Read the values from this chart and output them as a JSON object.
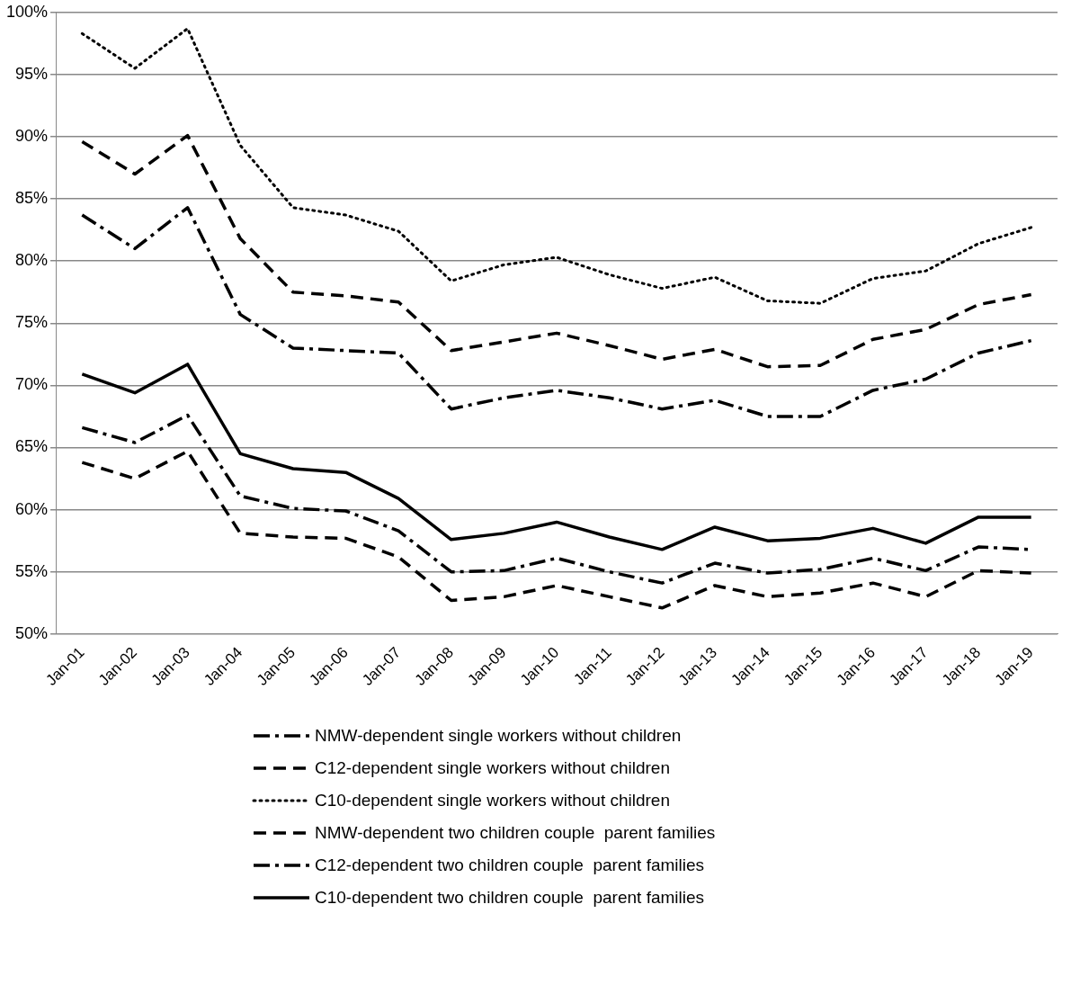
{
  "chart_data": {
    "type": "line",
    "categories": [
      "Jan-01",
      "Jan-02",
      "Jan-03",
      "Jan-04",
      "Jan-05",
      "Jan-06",
      "Jan-07",
      "Jan-08",
      "Jan-09",
      "Jan-10",
      "Jan-11",
      "Jan-12",
      "Jan-13",
      "Jan-14",
      "Jan-15",
      "Jan-16",
      "Jan-17",
      "Jan-18",
      "Jan-19"
    ],
    "ylim": [
      50,
      100
    ],
    "yticks": [
      {
        "value": 50,
        "label": "50%"
      },
      {
        "value": 55,
        "label": "55%"
      },
      {
        "value": 60,
        "label": "60%"
      },
      {
        "value": 65,
        "label": "65%"
      },
      {
        "value": 70,
        "label": "70%"
      },
      {
        "value": 75,
        "label": "75%"
      },
      {
        "value": 80,
        "label": "80%"
      },
      {
        "value": 85,
        "label": "85%"
      },
      {
        "value": 90,
        "label": "90%"
      },
      {
        "value": 95,
        "label": "95%"
      },
      {
        "value": 100,
        "label": "100%"
      }
    ],
    "grid": "y",
    "legend": "bottom",
    "marker": "none",
    "series": [
      {
        "name": "NMW-dependent single workers without children",
        "color": "#000000",
        "line_style": "dashdot",
        "values": [
          83.7,
          81,
          84.3,
          75.7,
          73,
          72.8,
          72.6,
          68.1,
          69,
          69.6,
          69,
          68.1,
          68.8,
          67.5,
          67.5,
          69.6,
          70.5,
          72.6,
          73.6
        ]
      },
      {
        "name": "C12-dependent single workers without children",
        "color": "#000000",
        "line_style": "dashed",
        "values": [
          89.6,
          87,
          90.1,
          81.8,
          77.5,
          77.2,
          76.7,
          72.8,
          73.5,
          74.2,
          73.2,
          72.1,
          72.9,
          71.5,
          71.6,
          73.7,
          74.5,
          76.5,
          77.3
        ]
      },
      {
        "name": "C10-dependent single workers without children",
        "color": "#000000",
        "line_style": "dotted",
        "values": [
          98.3,
          95.5,
          98.7,
          89.3,
          84.3,
          83.7,
          82.4,
          78.4,
          79.7,
          80.3,
          78.9,
          77.8,
          78.7,
          76.8,
          76.6,
          78.6,
          79.2,
          81.4,
          82.7
        ]
      },
      {
        "name": "NMW-dependent two children couple  parent families",
        "color": "#000000",
        "line_style": "dashed",
        "values": [
          63.8,
          62.5,
          64.7,
          58.1,
          57.8,
          57.7,
          56.2,
          52.7,
          53,
          53.9,
          53,
          52.1,
          53.9,
          53,
          53.3,
          54.1,
          53,
          55.1,
          54.9
        ]
      },
      {
        "name": "C12-dependent two children couple  parent families",
        "color": "#000000",
        "line_style": "dashdot",
        "values": [
          66.6,
          65.4,
          67.6,
          61.1,
          60.1,
          59.9,
          58.3,
          55,
          55.1,
          56.1,
          55,
          54.1,
          55.7,
          54.9,
          55.2,
          56.1,
          55.1,
          57,
          56.8
        ]
      },
      {
        "name": "C10-dependent two children couple  parent families",
        "color": "#000000",
        "line_style": "solid",
        "values": [
          70.9,
          69.4,
          71.7,
          64.5,
          63.3,
          63,
          60.9,
          57.6,
          58.1,
          59,
          57.8,
          56.8,
          58.6,
          57.5,
          57.7,
          58.5,
          57.3,
          59.4,
          59.4
        ]
      }
    ]
  }
}
